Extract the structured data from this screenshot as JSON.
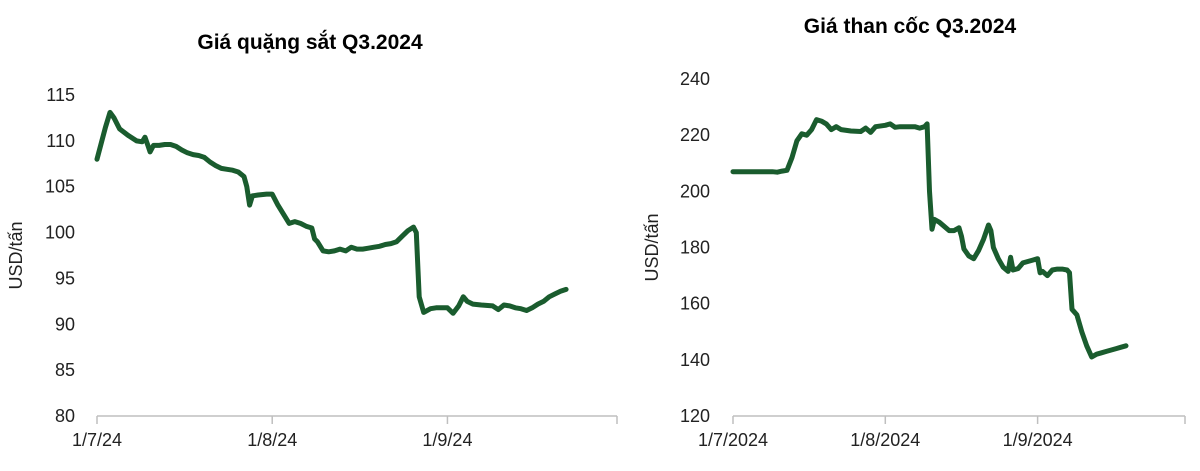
{
  "chart_data": [
    {
      "type": "line",
      "title": "Giá quặng sắt Q3.2024",
      "ylabel": "USD/tấn",
      "xlabel": "",
      "ylim": [
        80,
        115
      ],
      "yticks": [
        80,
        85,
        90,
        95,
        100,
        105,
        110,
        115
      ],
      "xlim": [
        0,
        92
      ],
      "xticks": [
        {
          "x": 0,
          "label": "1/7/24"
        },
        {
          "x": 31,
          "label": "1/8/24"
        },
        {
          "x": 62,
          "label": "1/9/24"
        }
      ],
      "grid": false,
      "color": "#1a5c2e",
      "series": [
        {
          "values": [
            [
              0,
              108
            ],
            [
              1.5,
              111.5
            ],
            [
              2.3,
              113.1
            ],
            [
              3,
              112.5
            ],
            [
              4,
              111.3
            ],
            [
              5.5,
              110.6
            ],
            [
              7,
              110
            ],
            [
              8,
              109.9
            ],
            [
              8.5,
              110.4
            ],
            [
              9,
              109.5
            ],
            [
              9.4,
              108.8
            ],
            [
              10,
              109.5
            ],
            [
              11,
              109.5
            ],
            [
              12,
              109.6
            ],
            [
              13,
              109.6
            ],
            [
              14,
              109.4
            ],
            [
              15,
              109
            ],
            [
              16,
              108.7
            ],
            [
              17,
              108.5
            ],
            [
              18,
              108.4
            ],
            [
              19,
              108.2
            ],
            [
              20,
              107.7
            ],
            [
              21,
              107.3
            ],
            [
              22,
              107
            ],
            [
              23,
              106.9
            ],
            [
              24,
              106.8
            ],
            [
              25,
              106.6
            ],
            [
              26,
              106.1
            ],
            [
              26.5,
              105
            ],
            [
              27,
              103
            ],
            [
              27.5,
              104
            ],
            [
              28.5,
              104.1
            ],
            [
              30,
              104.2
            ],
            [
              31,
              104.2
            ],
            [
              32,
              103
            ],
            [
              33,
              102
            ],
            [
              34,
              101
            ],
            [
              35,
              101.2
            ],
            [
              36,
              101
            ],
            [
              37,
              100.7
            ],
            [
              38,
              100.5
            ],
            [
              38.5,
              99.3
            ],
            [
              39,
              99
            ],
            [
              40,
              98
            ],
            [
              41,
              97.9
            ],
            [
              42,
              98
            ],
            [
              43,
              98.2
            ],
            [
              44,
              98
            ],
            [
              45,
              98.4
            ],
            [
              46,
              98.2
            ],
            [
              47,
              98.2
            ],
            [
              48,
              98.3
            ],
            [
              49,
              98.4
            ],
            [
              50,
              98.5
            ],
            [
              51,
              98.7
            ],
            [
              52,
              98.8
            ],
            [
              53,
              99
            ],
            [
              54,
              99.6
            ],
            [
              55,
              100.2
            ],
            [
              56,
              100.6
            ],
            [
              56.5,
              100
            ],
            [
              57,
              93
            ],
            [
              57.8,
              91.3
            ],
            [
              59,
              91.7
            ],
            [
              60,
              91.8
            ],
            [
              61,
              91.8
            ],
            [
              62,
              91.8
            ],
            [
              63,
              91.2
            ],
            [
              64,
              92
            ],
            [
              64.8,
              93
            ],
            [
              65.5,
              92.5
            ],
            [
              66.5,
              92.2
            ],
            [
              68,
              92.1
            ],
            [
              70,
              92
            ],
            [
              71,
              91.6
            ],
            [
              72,
              92.1
            ],
            [
              73,
              92
            ],
            [
              74,
              91.8
            ],
            [
              75,
              91.7
            ],
            [
              76,
              91.5
            ],
            [
              77,
              91.8
            ],
            [
              78,
              92.2
            ],
            [
              79,
              92.5
            ],
            [
              80,
              93
            ],
            [
              81,
              93.3
            ],
            [
              82,
              93.6
            ],
            [
              83,
              93.8
            ]
          ]
        }
      ]
    },
    {
      "type": "line",
      "title": "Giá than cốc Q3.2024",
      "ylabel": "USD/tấn",
      "xlabel": "",
      "ylim": [
        120,
        240
      ],
      "yticks": [
        120,
        140,
        160,
        180,
        200,
        220,
        240
      ],
      "xlim": [
        0,
        92
      ],
      "xticks": [
        {
          "x": 0,
          "label": "1/7/2024"
        },
        {
          "x": 31,
          "label": "1/8/2024"
        },
        {
          "x": 62,
          "label": "1/9/2024"
        }
      ],
      "grid": false,
      "color": "#1a5c2e",
      "series": [
        {
          "values": [
            [
              0,
              207
            ],
            [
              3,
              207
            ],
            [
              6,
              207
            ],
            [
              8,
              207
            ],
            [
              9,
              206.8
            ],
            [
              10,
              207.2
            ],
            [
              11,
              207.5
            ],
            [
              12,
              212
            ],
            [
              13,
              218
            ],
            [
              14,
              220.5
            ],
            [
              15,
              220
            ],
            [
              16,
              222
            ],
            [
              17,
              225.5
            ],
            [
              18,
              225
            ],
            [
              19,
              224
            ],
            [
              20,
              222
            ],
            [
              21,
              223
            ],
            [
              22,
              222
            ],
            [
              24,
              221.5
            ],
            [
              26,
              221.3
            ],
            [
              27,
              222.5
            ],
            [
              28,
              221
            ],
            [
              29,
              223
            ],
            [
              31,
              223.5
            ],
            [
              32,
              224
            ],
            [
              33,
              222.8
            ],
            [
              34,
              223
            ],
            [
              35,
              223
            ],
            [
              37,
              223
            ],
            [
              38,
              222.5
            ],
            [
              39,
              223
            ],
            [
              39.5,
              224
            ],
            [
              40,
              200
            ],
            [
              40.5,
              186.5
            ],
            [
              41,
              190
            ],
            [
              42,
              189
            ],
            [
              43,
              187.5
            ],
            [
              44,
              186
            ],
            [
              45,
              186
            ],
            [
              46,
              187
            ],
            [
              46.5,
              184
            ],
            [
              47,
              179.5
            ],
            [
              48,
              177
            ],
            [
              49,
              176
            ],
            [
              50,
              179
            ],
            [
              51,
              183
            ],
            [
              52,
              188
            ],
            [
              52.5,
              186
            ],
            [
              53,
              180
            ],
            [
              54,
              176
            ],
            [
              55,
              173
            ],
            [
              56,
              171.5
            ],
            [
              56.5,
              176.5
            ],
            [
              57,
              172
            ],
            [
              58,
              172.5
            ],
            [
              59,
              174.5
            ],
            [
              60,
              175
            ],
            [
              61,
              175.5
            ],
            [
              62,
              176
            ],
            [
              62.5,
              171
            ],
            [
              63,
              171.5
            ],
            [
              64,
              170
            ],
            [
              65,
              172
            ],
            [
              66,
              172.3
            ],
            [
              67,
              172.3
            ],
            [
              68,
              172
            ],
            [
              68.5,
              171
            ],
            [
              69,
              158
            ],
            [
              70,
              156
            ],
            [
              71,
              150
            ],
            [
              72,
              145
            ],
            [
              73,
              141
            ],
            [
              74,
              142
            ],
            [
              75,
              142.5
            ],
            [
              76,
              143
            ],
            [
              77,
              143.5
            ],
            [
              78,
              144
            ],
            [
              79,
              144.5
            ],
            [
              80,
              145
            ]
          ]
        }
      ]
    }
  ]
}
